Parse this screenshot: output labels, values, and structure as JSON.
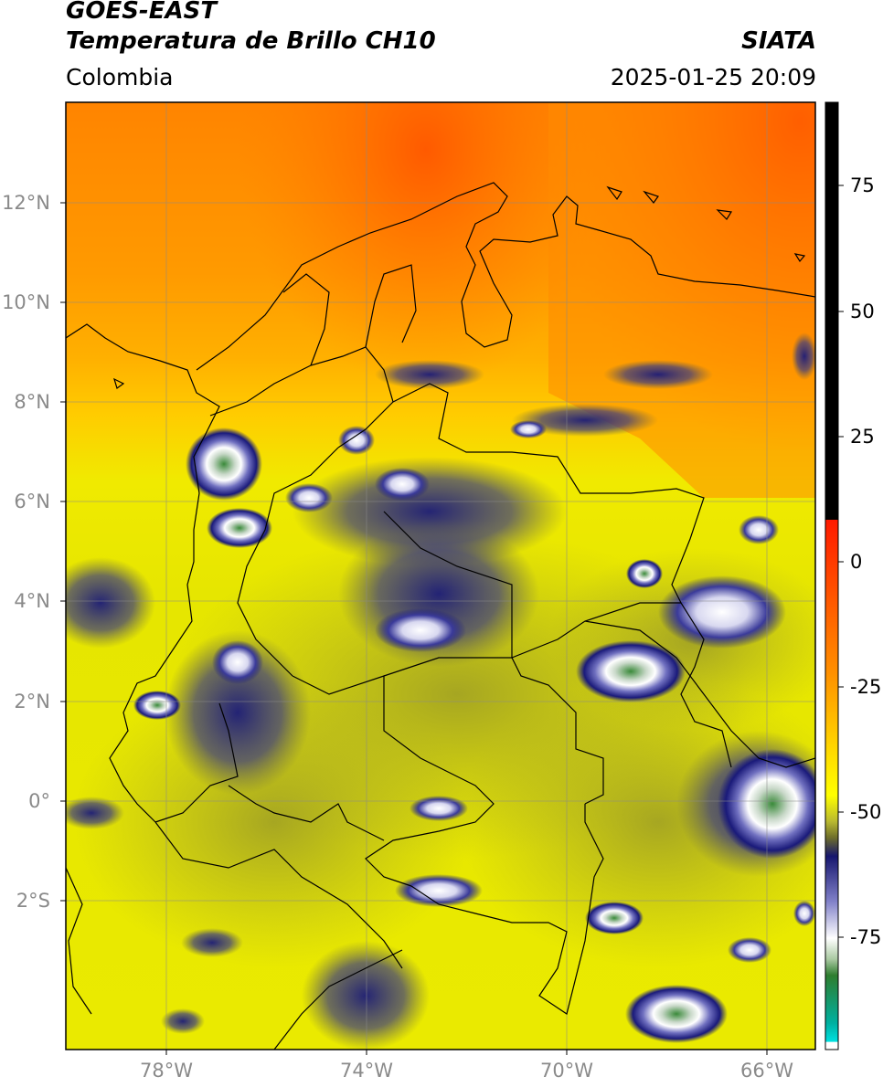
{
  "header": {
    "satellite": "GOES-EAST",
    "product": "Temperatura de Brillo CH10",
    "agency": "SIATA",
    "region": "Colombia",
    "datetime": "2025-01-25 20:09"
  },
  "map": {
    "lat_ticks": [
      "12°N",
      "10°N",
      "8°N",
      "6°N",
      "4°N",
      "2°N",
      "0°",
      "2°S"
    ],
    "lon_ticks": [
      "78°W",
      "74°W",
      "70°W",
      "66°W"
    ],
    "gridlines": true
  },
  "colorbar": {
    "ticks": [
      "75",
      "50",
      "25",
      "0",
      "-25",
      "-50",
      "-75"
    ],
    "colors": {
      "black": "#000000",
      "red": "#ff1a00",
      "orange": "#ff8c00",
      "yellow": "#ffff00",
      "olive": "#6e6e2a",
      "navy": "#16166e",
      "white": "#ffffff",
      "green": "#2e7d2e",
      "cyan": "#00e0e0"
    }
  },
  "colors": {
    "warm_sea": "#ff8800",
    "warm_land": "#ffd000",
    "mid": "#e6e600",
    "cloud_dark": "#1a1a7a",
    "cloud_white": "#f2f2f2",
    "cloud_green": "#3a8a3a"
  }
}
